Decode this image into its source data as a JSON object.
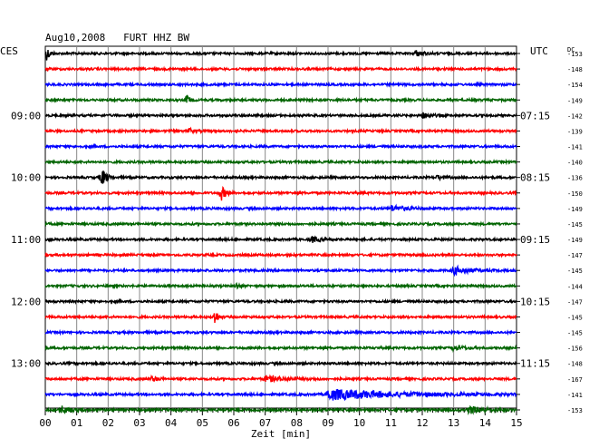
{
  "chart_data": {
    "type": "line",
    "title": "Aug10,2008   FURT HHZ BW",
    "left_axis_label": "CES",
    "right_axis_label": "UTC",
    "dc_label": "DC",
    "xlabel": "Zeit [min]",
    "x_ticks": [
      "00",
      "01",
      "02",
      "03",
      "04",
      "05",
      "06",
      "07",
      "08",
      "09",
      "10",
      "11",
      "12",
      "13",
      "14",
      "15"
    ],
    "xlim": [
      0,
      15
    ],
    "grid": true,
    "left_time_labels": [
      {
        "row": 4,
        "text": "09:00"
      },
      {
        "row": 8,
        "text": "10:00"
      },
      {
        "row": 12,
        "text": "11:00"
      },
      {
        "row": 16,
        "text": "12:00"
      },
      {
        "row": 20,
        "text": "13:00"
      }
    ],
    "right_time_labels": [
      {
        "row": 4,
        "text": "07:15"
      },
      {
        "row": 8,
        "text": "08:15"
      },
      {
        "row": 12,
        "text": "09:15"
      },
      {
        "row": 16,
        "text": "10:15"
      },
      {
        "row": 20,
        "text": "11:15"
      }
    ],
    "trace_colors": [
      "#000000",
      "#ff0000",
      "#0000ff",
      "#006400"
    ],
    "dc_offsets": [
      -153,
      -148,
      -154,
      -149,
      -142,
      -139,
      -141,
      -140,
      -136,
      -150,
      -149,
      -145,
      -149,
      -147,
      -145,
      -144,
      -147,
      -145,
      -145,
      -156,
      -148,
      -167,
      -141,
      -153
    ],
    "events": [
      {
        "row": 0,
        "minute": 0.05,
        "amp": 7,
        "dur": 0.3
      },
      {
        "row": 0,
        "minute": 11.8,
        "amp": 3,
        "dur": 0.6
      },
      {
        "row": 3,
        "minute": 4.5,
        "amp": 5,
        "dur": 0.3
      },
      {
        "row": 4,
        "minute": 12.0,
        "amp": 3,
        "dur": 0.7
      },
      {
        "row": 5,
        "minute": 4.6,
        "amp": 3,
        "dur": 0.3
      },
      {
        "row": 8,
        "minute": 1.8,
        "amp": 10,
        "dur": 0.4
      },
      {
        "row": 8,
        "minute": 12.5,
        "amp": 2.5,
        "dur": 0.5
      },
      {
        "row": 9,
        "minute": 5.6,
        "amp": 8,
        "dur": 0.4
      },
      {
        "row": 10,
        "minute": 11.0,
        "amp": 3,
        "dur": 1.5
      },
      {
        "row": 12,
        "minute": 8.5,
        "amp": 3,
        "dur": 0.7
      },
      {
        "row": 14,
        "minute": 13.0,
        "amp": 4,
        "dur": 1.5
      },
      {
        "row": 15,
        "minute": 6.1,
        "amp": 3,
        "dur": 0.3
      },
      {
        "row": 17,
        "minute": 5.4,
        "amp": 8,
        "dur": 0.3
      },
      {
        "row": 19,
        "minute": 13.0,
        "amp": 3,
        "dur": 0.8
      },
      {
        "row": 21,
        "minute": 3.4,
        "amp": 3,
        "dur": 0.5
      },
      {
        "row": 21,
        "minute": 7.0,
        "amp": 3,
        "dur": 2.0
      },
      {
        "row": 22,
        "minute": 9.0,
        "amp": 6,
        "dur": 6.0
      },
      {
        "row": 23,
        "minute": 0.5,
        "amp": 4,
        "dur": 1.0
      },
      {
        "row": 23,
        "minute": 13.5,
        "amp": 4,
        "dur": 1.5
      }
    ]
  }
}
